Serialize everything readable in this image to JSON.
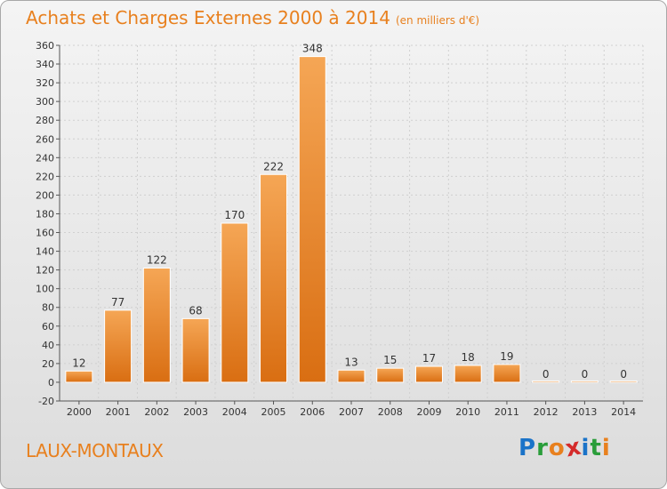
{
  "header": {
    "title": "Achats et Charges Externes 2000 à 2014",
    "unit": "(en milliers d'€)"
  },
  "footer": {
    "commune": "LAUX-MONTAUX",
    "logo_letters": [
      {
        "char": "P",
        "color": "#1a73c8"
      },
      {
        "char": "r",
        "color": "#2a9d3a"
      },
      {
        "char": "o",
        "color": "#e8801e"
      },
      {
        "char": "x",
        "color": "#d42a2a"
      },
      {
        "char": "i",
        "color": "#1a73c8"
      },
      {
        "char": "t",
        "color": "#2a9d3a"
      },
      {
        "char": "i",
        "color": "#e8801e"
      }
    ]
  },
  "colors": {
    "accent": "#e8801e",
    "bar_light": "#f5a655",
    "bar_dark": "#d96e12",
    "grid": "#d0d0d0",
    "axis_text": "#333333"
  },
  "chart_data": {
    "type": "bar",
    "title": "Achats et Charges Externes 2000 à 2014",
    "subtitle": "(en milliers d'€)",
    "categories": [
      "2000",
      "2001",
      "2002",
      "2003",
      "2004",
      "2005",
      "2006",
      "2007",
      "2008",
      "2009",
      "2010",
      "2011",
      "2012",
      "2013",
      "2014"
    ],
    "values": [
      12,
      77,
      122,
      68,
      170,
      222,
      348,
      13,
      15,
      17,
      18,
      19,
      0,
      0,
      0
    ],
    "ylim": [
      -20,
      360
    ],
    "yticks": [
      -20,
      0,
      20,
      40,
      60,
      80,
      100,
      120,
      140,
      160,
      180,
      200,
      220,
      240,
      260,
      280,
      300,
      320,
      340,
      360
    ],
    "grid": true,
    "legend": "none"
  }
}
